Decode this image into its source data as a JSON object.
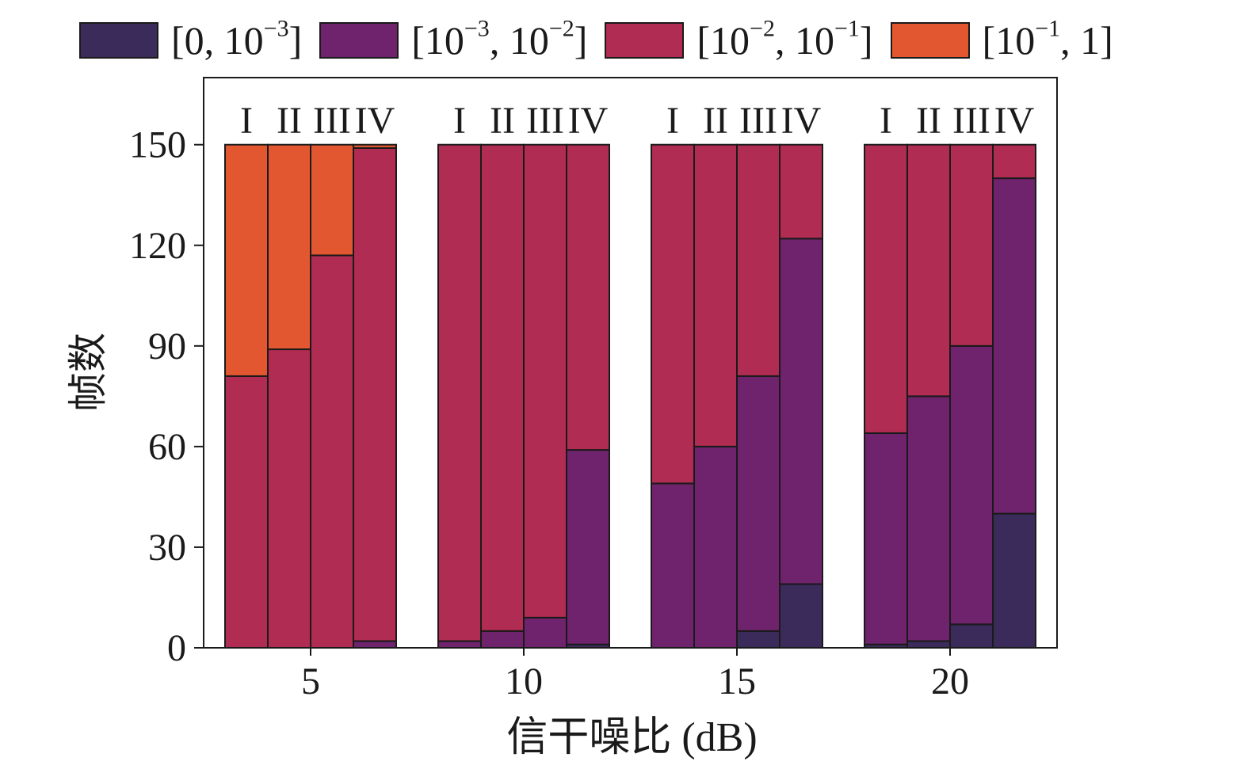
{
  "chart_data": {
    "type": "bar",
    "stacked": true,
    "grouped": true,
    "xlabel": "信干噪比 (dB)",
    "ylabel": "帧数",
    "ylim": [
      0,
      170
    ],
    "yticks": [
      0,
      30,
      60,
      90,
      120,
      150
    ],
    "groups": [
      "5",
      "10",
      "15",
      "20"
    ],
    "methods": [
      "I",
      "II",
      "III",
      "IV"
    ],
    "legend_position": "top",
    "series": [
      {
        "name_parts": [
          "[0, 10",
          "−3",
          "]"
        ],
        "color": "#3b2b5a",
        "values": [
          [
            0,
            0,
            0,
            0
          ],
          [
            0,
            0,
            0,
            1
          ],
          [
            0,
            0,
            5,
            19
          ],
          [
            1,
            2,
            7,
            40
          ]
        ]
      },
      {
        "name_parts": [
          "[10",
          "−3",
          ", 10",
          "−2",
          "]"
        ],
        "color": "#6e236c",
        "values": [
          [
            0,
            0,
            0,
            2
          ],
          [
            2,
            5,
            9,
            58
          ],
          [
            49,
            60,
            76,
            103
          ],
          [
            63,
            73,
            83,
            100
          ]
        ]
      },
      {
        "name_parts": [
          "[10",
          "−2",
          ", 10",
          "−1",
          "]"
        ],
        "color": "#b02c52",
        "values": [
          [
            81,
            89,
            117,
            147
          ],
          [
            148,
            145,
            141,
            91
          ],
          [
            101,
            90,
            69,
            28
          ],
          [
            86,
            75,
            60,
            10
          ]
        ]
      },
      {
        "name_parts": [
          "[10",
          "−1",
          ", 1]"
        ],
        "color": "#e2572f",
        "values": [
          [
            69,
            61,
            33,
            1
          ],
          [
            0,
            0,
            0,
            0
          ],
          [
            0,
            0,
            0,
            0
          ],
          [
            0,
            0,
            0,
            0
          ]
        ]
      }
    ]
  }
}
